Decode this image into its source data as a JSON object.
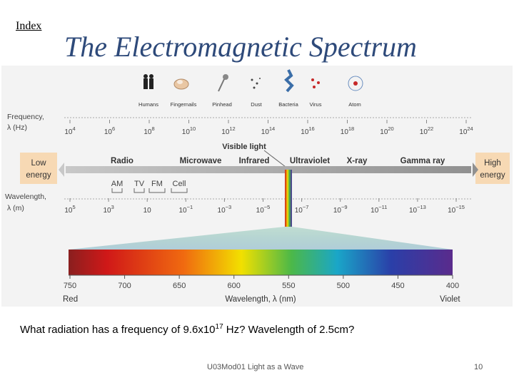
{
  "header": {
    "index_link": "Index",
    "title": "The Electromagnetic Spectrum"
  },
  "diagram": {
    "objects": [
      "Humans",
      "Fingernails",
      "Pinhead",
      "Dust",
      "Bacteria",
      "Virus",
      "Atom"
    ],
    "frequency_label": [
      "Frequency,",
      "λ (Hz)"
    ],
    "frequency_ticks": [
      {
        "base": "10",
        "exp": "4"
      },
      {
        "base": "10",
        "exp": "6"
      },
      {
        "base": "10",
        "exp": "8"
      },
      {
        "base": "10",
        "exp": "10"
      },
      {
        "base": "10",
        "exp": "12"
      },
      {
        "base": "10",
        "exp": "14"
      },
      {
        "base": "10",
        "exp": "16"
      },
      {
        "base": "10",
        "exp": "18"
      },
      {
        "base": "10",
        "exp": "20"
      },
      {
        "base": "10",
        "exp": "22"
      },
      {
        "base": "10",
        "exp": "24"
      }
    ],
    "low_energy": [
      "Low",
      "energy"
    ],
    "high_energy": [
      "High",
      "energy"
    ],
    "visible_light": "Visible light",
    "bands": [
      "Radio",
      "Microwave",
      "Infrared",
      "Ultraviolet",
      "X-ray",
      "Gamma ray"
    ],
    "radio_sub": [
      "AM",
      "TV",
      "FM",
      "Cell"
    ],
    "wavelength_label": [
      "Wavelength,",
      "λ (m)"
    ],
    "wavelength_ticks": [
      {
        "base": "10",
        "exp": "5"
      },
      {
        "base": "10",
        "exp": "3"
      },
      {
        "base": "10",
        "exp": ""
      },
      {
        "base": "10",
        "exp": "−1"
      },
      {
        "base": "10",
        "exp": "−3"
      },
      {
        "base": "10",
        "exp": "−5"
      },
      {
        "base": "10",
        "exp": "−7"
      },
      {
        "base": "10",
        "exp": "−9"
      },
      {
        "base": "10",
        "exp": "−11"
      },
      {
        "base": "10",
        "exp": "−13"
      },
      {
        "base": "10",
        "exp": "−15"
      }
    ],
    "nm_ticks": [
      "750",
      "700",
      "650",
      "600",
      "550",
      "500",
      "450",
      "400"
    ],
    "red_label": "Red",
    "violet_label": "Violet",
    "nm_axis_label": "Wavelength, λ (nm)"
  },
  "question": {
    "part1": "What radiation has a frequency of 9.6x10",
    "exp": "17",
    "part2": " Hz?   Wavelength of 2.5cm?"
  },
  "footer": {
    "text": "U03Mod01 Light as a Wave",
    "slide_number": "10"
  }
}
